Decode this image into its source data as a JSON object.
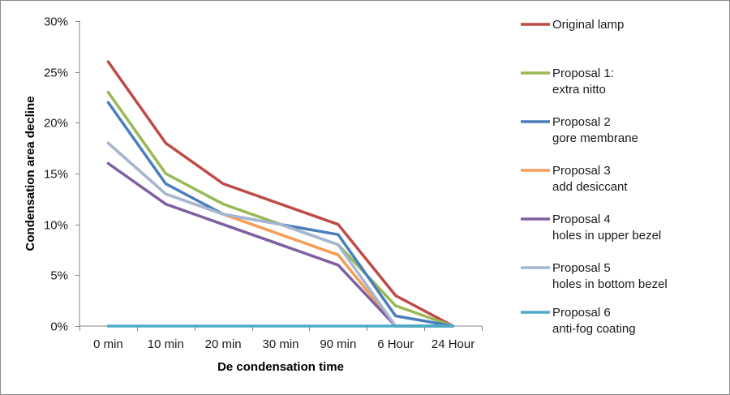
{
  "chart_data": {
    "type": "line",
    "title": "",
    "xlabel": "De condensation time",
    "ylabel": "Condensation area decline",
    "categories": [
      "0 min",
      "10 min",
      "20 min",
      "30 min",
      "90 min",
      "6 Hour",
      "24 Hour"
    ],
    "ylim": [
      0,
      0.3
    ],
    "yticks": [
      0,
      0.05,
      0.1,
      0.15,
      0.2,
      0.25,
      0.3
    ],
    "ytick_labels": [
      "0%",
      "5%",
      "10%",
      "15%",
      "20%",
      "25%",
      "30%"
    ],
    "grid": false,
    "legend_position": "right",
    "series": [
      {
        "name": "Original lamp",
        "name_lines": [
          "Original lamp"
        ],
        "color": "#be4b48",
        "values": [
          0.26,
          0.18,
          0.14,
          0.12,
          0.1,
          0.03,
          0.0
        ]
      },
      {
        "name": "Proposal 1: extra nitto",
        "name_lines": [
          "Proposal 1:",
          " extra nitto"
        ],
        "color": "#98b954",
        "values": [
          0.23,
          0.15,
          0.12,
          0.1,
          0.08,
          0.02,
          0.0
        ]
      },
      {
        "name": "Proposal 2 gore membrane",
        "name_lines": [
          "Proposal 2",
          "gore membrane"
        ],
        "color": "#4a7ebb",
        "values": [
          0.22,
          0.14,
          0.11,
          0.1,
          0.09,
          0.01,
          0.0
        ]
      },
      {
        "name": "Proposal 3 add desiccant",
        "name_lines": [
          "Proposal 3",
          "add desiccant"
        ],
        "color": "#f59d56",
        "values": [
          0.18,
          0.13,
          0.11,
          0.09,
          0.07,
          0.0,
          0.0
        ]
      },
      {
        "name": "Proposal 4 holes in upper bezel",
        "name_lines": [
          "Proposal 4",
          "holes in upper bezel"
        ],
        "color": "#7d60a0",
        "values": [
          0.16,
          0.12,
          0.1,
          0.08,
          0.06,
          0.0,
          0.0
        ]
      },
      {
        "name": "Proposal 5 holes in bottom bezel",
        "name_lines": [
          "Proposal 5",
          "holes in bottom bezel"
        ],
        "color": "#a5b6d3",
        "values": [
          0.18,
          0.13,
          0.11,
          0.1,
          0.08,
          0.0,
          0.0
        ]
      },
      {
        "name": "Proposal 6 anti-fog coating",
        "name_lines": [
          "Proposal 6",
          "anti-fog coating"
        ],
        "color": "#4bacc6",
        "values": [
          0.0,
          0.0,
          0.0,
          0.0,
          0.0,
          0.0,
          0.0
        ]
      }
    ]
  }
}
